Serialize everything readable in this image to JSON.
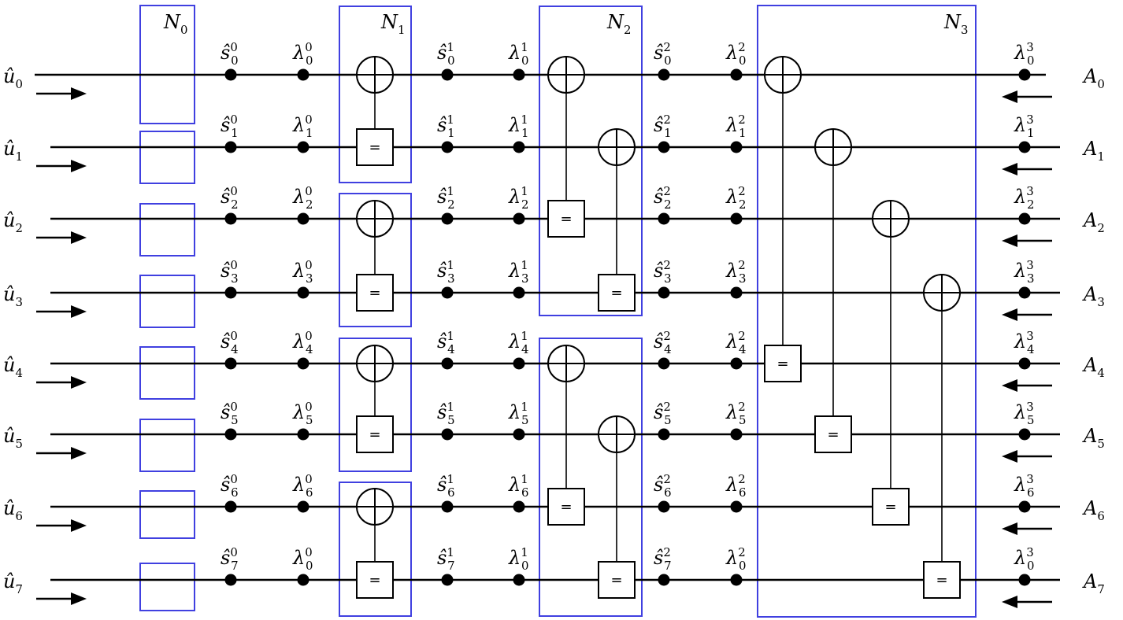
{
  "colors": {
    "stage_box": "#4040e0",
    "line": "#000000"
  },
  "stages": [
    {
      "label": "N",
      "sub": "0"
    },
    {
      "label": "N",
      "sub": "1"
    },
    {
      "label": "N",
      "sub": "2"
    },
    {
      "label": "N",
      "sub": "3"
    }
  ],
  "inputs": [
    {
      "base": "û",
      "sub": "0"
    },
    {
      "base": "û",
      "sub": "1"
    },
    {
      "base": "û",
      "sub": "2"
    },
    {
      "base": "û",
      "sub": "3"
    },
    {
      "base": "û",
      "sub": "4"
    },
    {
      "base": "û",
      "sub": "5"
    },
    {
      "base": "û",
      "sub": "6"
    },
    {
      "base": "û",
      "sub": "7"
    }
  ],
  "outputs": [
    {
      "base": "A",
      "sub": "0"
    },
    {
      "base": "A",
      "sub": "1"
    },
    {
      "base": "A",
      "sub": "2"
    },
    {
      "base": "A",
      "sub": "3"
    },
    {
      "base": "A",
      "sub": "4"
    },
    {
      "base": "A",
      "sub": "5"
    },
    {
      "base": "A",
      "sub": "6"
    },
    {
      "base": "A",
      "sub": "7"
    }
  ],
  "node_columns": [
    {
      "base": "ŝ",
      "sup": "0",
      "subs": [
        "0",
        "1",
        "2",
        "3",
        "4",
        "5",
        "6",
        "7"
      ]
    },
    {
      "base": "λ",
      "sup": "0",
      "subs": [
        "0",
        "1",
        "2",
        "3",
        "4",
        "5",
        "6",
        "0"
      ]
    },
    {
      "base": "ŝ",
      "sup": "1",
      "subs": [
        "0",
        "1",
        "2",
        "3",
        "4",
        "5",
        "6",
        "7"
      ]
    },
    {
      "base": "λ",
      "sup": "1",
      "subs": [
        "0",
        "1",
        "2",
        "3",
        "4",
        "5",
        "6",
        "0"
      ]
    },
    {
      "base": "ŝ",
      "sup": "2",
      "subs": [
        "0",
        "1",
        "2",
        "3",
        "4",
        "5",
        "6",
        "7"
      ]
    },
    {
      "base": "λ",
      "sup": "2",
      "subs": [
        "0",
        "1",
        "2",
        "3",
        "4",
        "5",
        "6",
        "0"
      ]
    },
    {
      "base": "λ",
      "sup": "3",
      "subs": [
        "0",
        "1",
        "2",
        "3",
        "4",
        "5",
        "6",
        "0"
      ]
    }
  ],
  "equal_symbol": "=",
  "gates": [
    {
      "stage": 1,
      "xor_row": 0,
      "eq_row": 1
    },
    {
      "stage": 1,
      "xor_row": 2,
      "eq_row": 3
    },
    {
      "stage": 1,
      "xor_row": 4,
      "eq_row": 5
    },
    {
      "stage": 1,
      "xor_row": 6,
      "eq_row": 7
    },
    {
      "stage": 2,
      "xor_row": 0,
      "eq_row": 2
    },
    {
      "stage": 2,
      "xor_row": 1,
      "eq_row": 3
    },
    {
      "stage": 2,
      "xor_row": 4,
      "eq_row": 6
    },
    {
      "stage": 2,
      "xor_row": 5,
      "eq_row": 7
    },
    {
      "stage": 3,
      "xor_row": 0,
      "eq_row": 4
    },
    {
      "stage": 3,
      "xor_row": 1,
      "eq_row": 5
    },
    {
      "stage": 3,
      "xor_row": 2,
      "eq_row": 6
    },
    {
      "stage": 3,
      "xor_row": 3,
      "eq_row": 7
    }
  ],
  "input_arrow_direction": "right",
  "output_arrow_direction": "left"
}
